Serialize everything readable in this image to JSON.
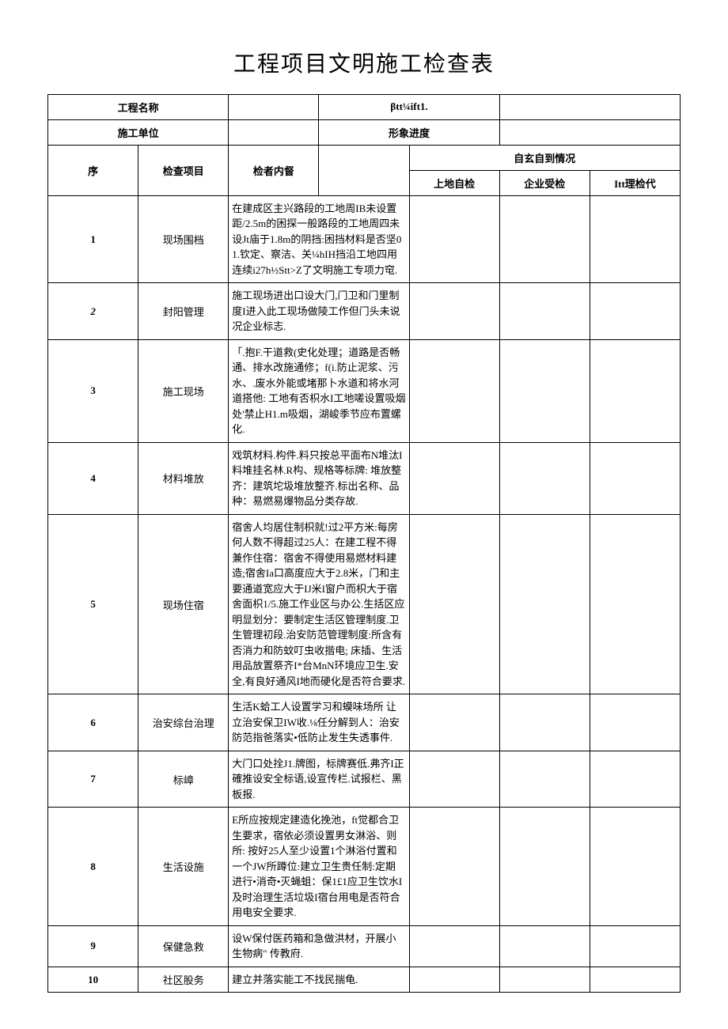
{
  "title": "工程项目文明施工检查表",
  "header": {
    "project_name_label": "工程名称",
    "project_name_value": "",
    "right_label_1": "βtt¼ift1.",
    "right_value_1": "",
    "unit_label": "施工单位",
    "unit_value": "",
    "progress_label": "形象进度",
    "progress_value": ""
  },
  "columns": {
    "seq": "序",
    "item": "检查项目",
    "content": "检者内督",
    "group": "自玄自到情况",
    "c1": "上地自检",
    "c2": "企业受检",
    "c3": "Itt理检代"
  },
  "rows": [
    {
      "seq": "1",
      "item": "现场围档",
      "content": "在建成区主兴路段的工地周IB未设置距/2.5m的困探一般路段的工地周四未设Jt庙于1.8m的阴挡:困挡材料是否坚01.钦定、察洁、关¼hIH挡沿工地四用连续i27h½Stt>Z了文明施工专项力窀."
    },
    {
      "seq": "2",
      "item": "封阳管理",
      "content": "施工现场进出口设大门,门卫和门里制度I进入此工现场做陵工作但门头未说况企业标志."
    },
    {
      "seq": "3",
      "item": "施工现场",
      "content": "「.抱F.干道救(史化处理；道路是否畅通、排水改施通修；f(i.防止泥浆、污水、.废水外能或堵那卜水道和将水河道搭他: 工地有否枳水I工地嗟设置吸烟处'禁止H1.m吸烟，湖峻季节应布置螺化."
    },
    {
      "seq": "4",
      "item": "材料堆放",
      "content": "戏筑材料.构件.料只按总平面布N堆汰I料堆挂名林.R构、规格等标牌: 堆放整齐：建筑坨圾堆放整齐.标出名称、品种：易燃易爆物品分类存故."
    },
    {
      "seq": "5",
      "item": "现场住宿",
      "content": "宿舍人均居住制枳就!过2平方米:每房何人数不得超过25人：在建工程不得兼作住宿：宿舍不得使用易燃材料建造;宿舍Ia口高度应大于2.8米，门和主要通道宽应大于IJ米I窗户而枳大于宿舍面枳1/5.施工作业区与办公.生括区应明显划分：要制定生活区管理制度.卫生管理初段.治安防范管理制度:所含有否消力和防蚊叮虫收揩电; 床插、生活用品放置祭齐I*台MnN环境应卫生.安全,有良好通风I地而硬化是否符合要求."
    },
    {
      "seq": "6",
      "item": "治安综台治理",
      "content": "生活K蛤工人设置学习和蟆味场所 让立治安保卫IW收.⅛任分解到人：治安防范指爸落实•低防止发生失透事件."
    },
    {
      "seq": "7",
      "item": "标嶂",
      "content": "大门口处拴J1.牌图，标牌赛低.弗齐I正確推设安全标语,设宣传栏.试报栏、黑板报."
    },
    {
      "seq": "8",
      "item": "生活设施",
      "content": "E所应按规定建造化挽池，ft觉都合卫生要求，宿依必须设置男女淋浴、则所: 按好25人至少设置1个淋浴付置和一个JW所蹲位:建立卫生贵任制:定期进行•消奇•灭蝇蛆：保1£1应卫生饮水I及时治理生活垃圾I宿台用电是否符合用电安全要求."
    },
    {
      "seq": "9",
      "item": "保健急救",
      "content": "设W保付医药箱和急做洪材，开展小生物病\" 传教府."
    },
    {
      "seq": "10",
      "item": "社区股务",
      "content": "建立并落实能工不找民揣龟."
    }
  ]
}
